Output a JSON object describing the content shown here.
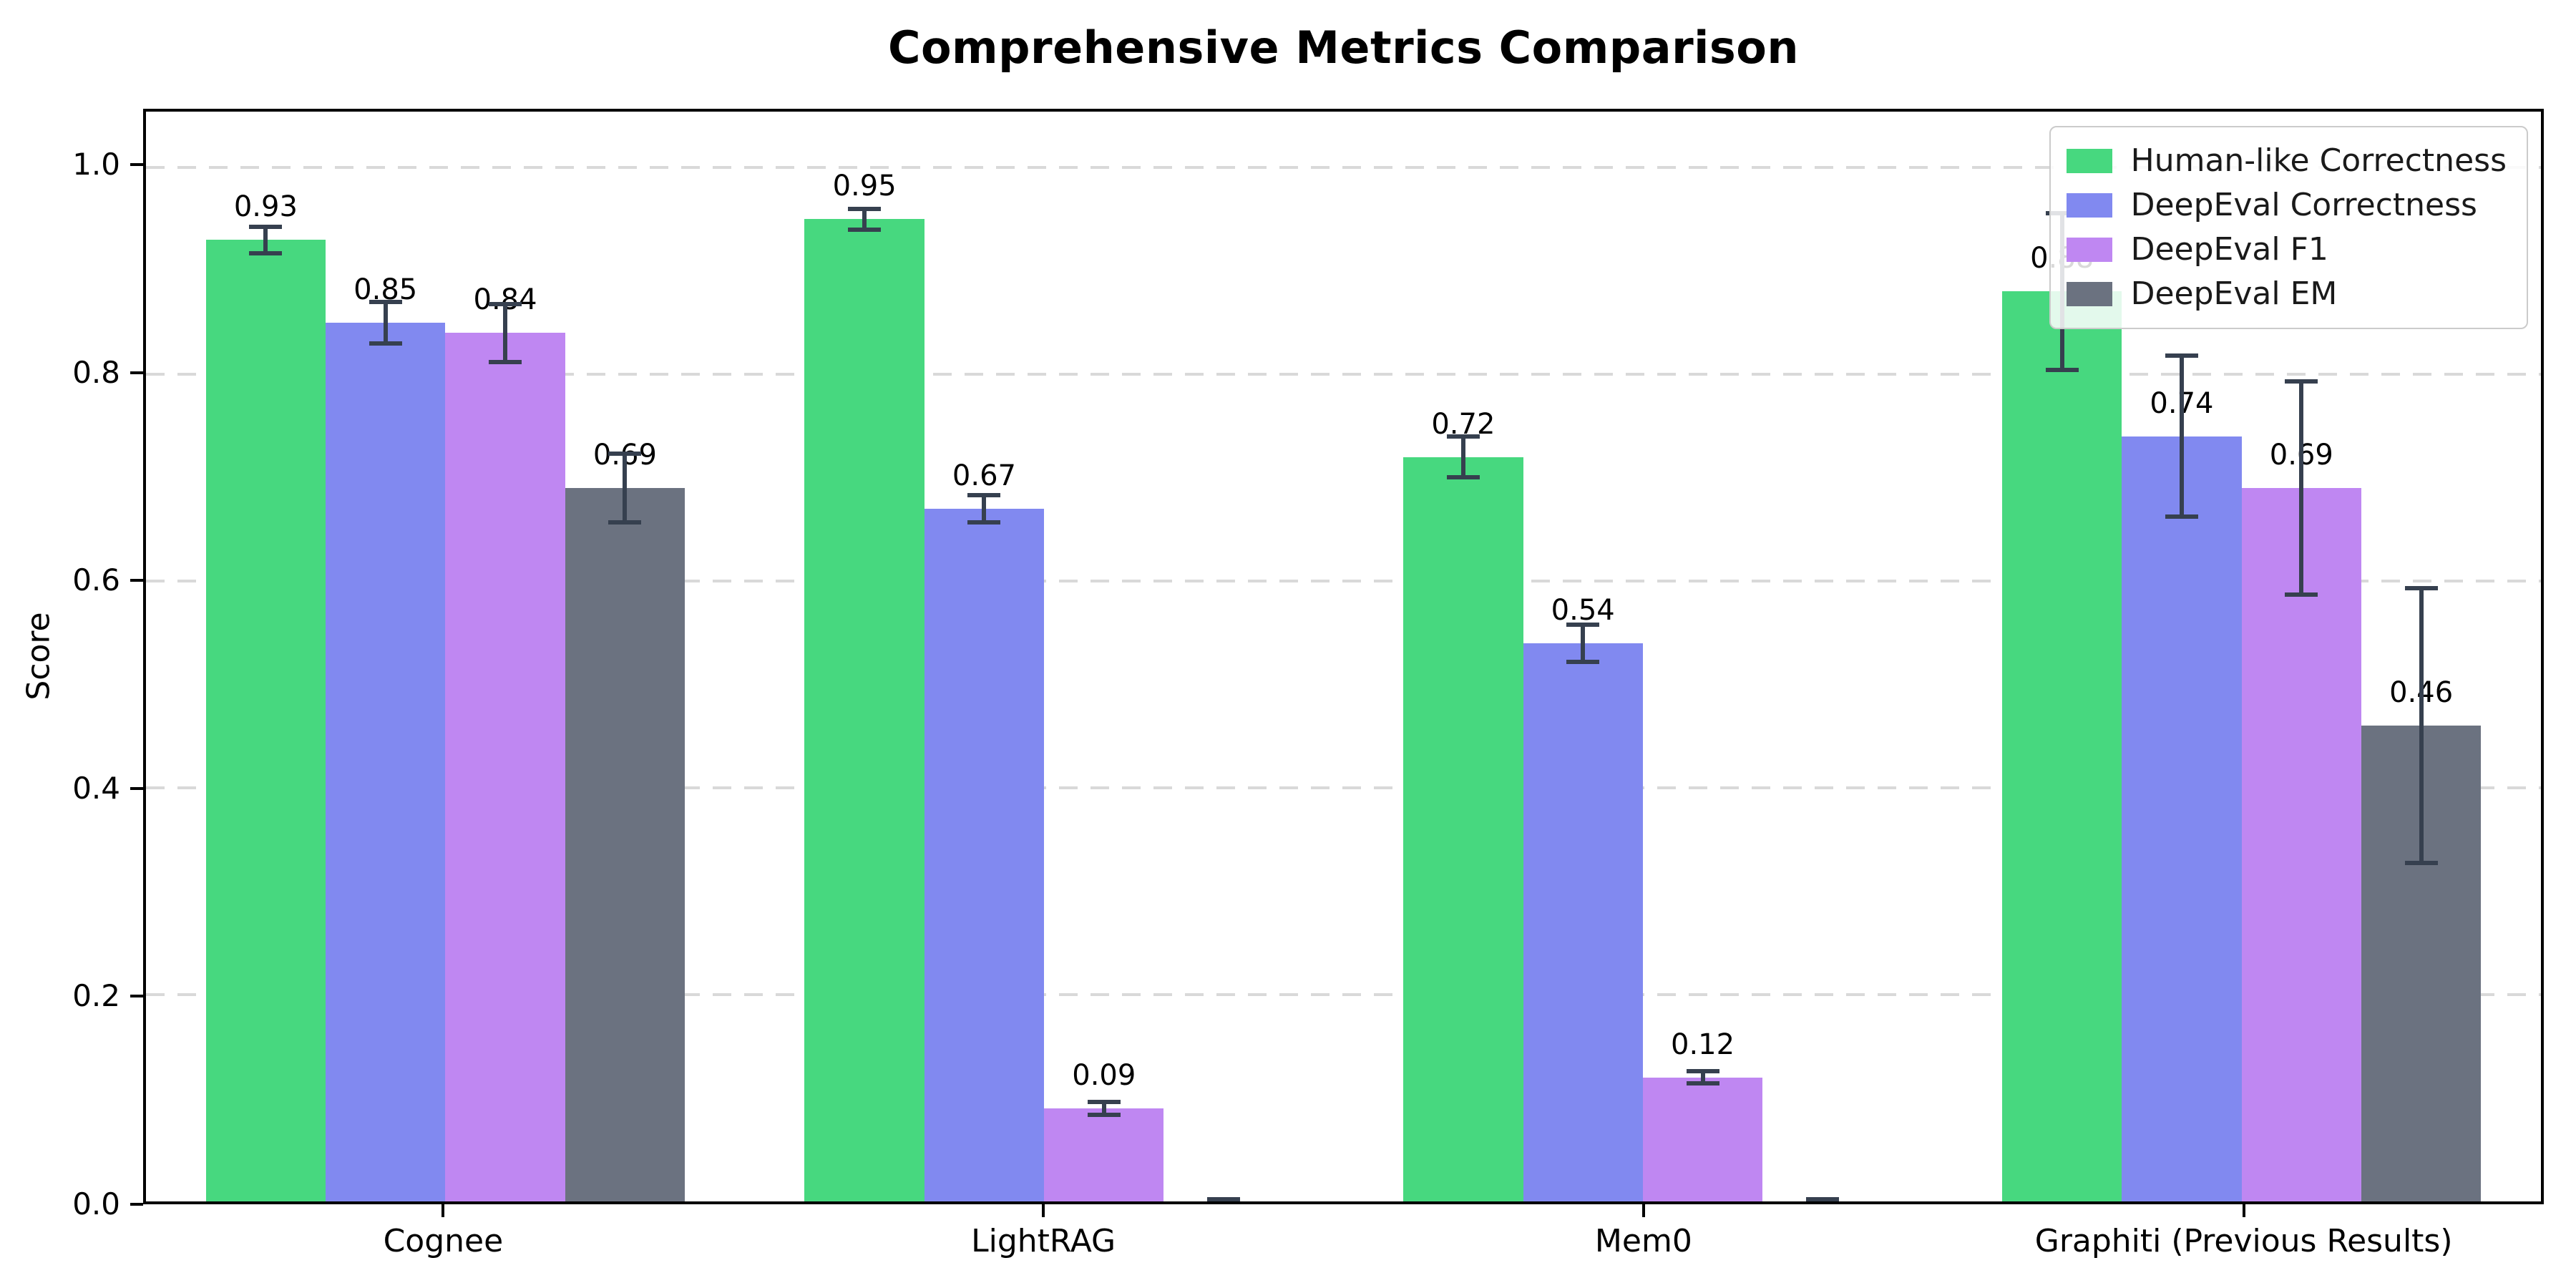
{
  "chart_data": {
    "type": "bar",
    "title": "Comprehensive Metrics Comparison",
    "ylabel": "Score",
    "xlabel": "",
    "categories": [
      "Cognee",
      "LightRAG",
      "Mem0",
      "Graphiti (Previous Results)"
    ],
    "series": [
      {
        "name": "Human-like Correctness",
        "color": "#47d87f",
        "values": [
          0.93,
          0.95,
          0.72,
          0.88
        ],
        "errors": [
          0.015,
          0.012,
          0.022,
          0.078
        ],
        "labels": [
          "0.93",
          "0.95",
          "0.72",
          "0.88"
        ]
      },
      {
        "name": "DeepEval Correctness",
        "color": "#8189f0",
        "values": [
          0.85,
          0.67,
          0.54,
          0.74
        ],
        "errors": [
          0.022,
          0.015,
          0.02,
          0.08
        ],
        "labels": [
          "0.85",
          "0.67",
          "0.54",
          "0.74"
        ]
      },
      {
        "name": "DeepEval F1",
        "color": "#bf87f2",
        "values": [
          0.84,
          0.09,
          0.12,
          0.69
        ],
        "errors": [
          0.03,
          0.008,
          0.008,
          0.105
        ],
        "labels": [
          "0.84",
          "0.09",
          "0.12",
          "0.69"
        ]
      },
      {
        "name": "DeepEval EM",
        "color": "#6b7280",
        "values": [
          0.69,
          0.0,
          0.0,
          0.46
        ],
        "errors": [
          0.035,
          0.004,
          0.004,
          0.135
        ],
        "labels": [
          "0.69",
          "",
          "",
          "0.46"
        ]
      }
    ],
    "yticks": [
      "0.0",
      "0.2",
      "0.4",
      "0.6",
      "0.8",
      "1.0"
    ],
    "ylim": [
      0,
      1.054
    ],
    "grid": "horizontal-dashed",
    "legend": {
      "position": "upper right",
      "entries": [
        "Human-like Correctness",
        "DeepEval Correctness",
        "DeepEval F1",
        "DeepEval EM"
      ]
    },
    "colors": {
      "errorbar": "#36404f",
      "grid": "#d9d9d9",
      "axis": "#000000",
      "background": "#ffffff"
    }
  }
}
